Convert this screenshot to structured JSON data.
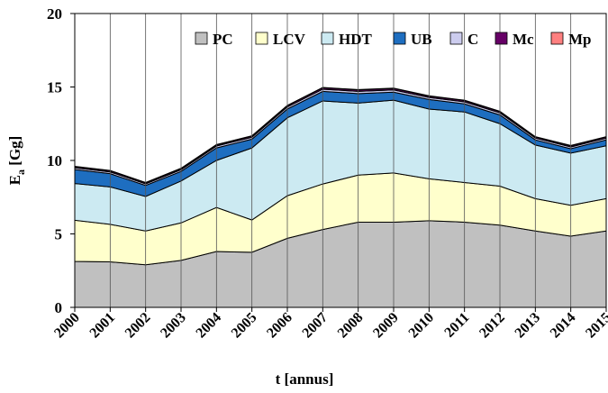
{
  "chart_data": {
    "type": "stacked-area",
    "x_title": "t [annus]",
    "y_title_parts": [
      "E",
      "a",
      " [Gg]"
    ],
    "categories": [
      "2000",
      "2001",
      "2002",
      "2003",
      "2004",
      "2005",
      "2006",
      "2007",
      "2008",
      "2009",
      "2010",
      "2011",
      "2012",
      "2013",
      "2014",
      "2015"
    ],
    "ylim": [
      0,
      20
    ],
    "yticks": [
      0,
      5,
      10,
      15,
      20
    ],
    "vertical_grid": true,
    "legend": "top",
    "series": [
      {
        "name": "PC",
        "color": "#c0c0c0",
        "values": [
          3.13,
          3.1,
          2.9,
          3.2,
          3.8,
          3.75,
          4.7,
          5.3,
          5.8,
          5.8,
          5.9,
          5.8,
          5.6,
          5.2,
          4.85,
          5.2
        ]
      },
      {
        "name": "LCV",
        "color": "#ffffcc",
        "values": [
          2.8,
          2.55,
          2.3,
          2.55,
          3.0,
          2.2,
          2.9,
          3.1,
          3.2,
          3.35,
          2.85,
          2.7,
          2.65,
          2.2,
          2.1,
          2.2
        ]
      },
      {
        "name": "HDT",
        "color": "#cceaf2",
        "values": [
          2.5,
          2.55,
          2.35,
          2.85,
          3.2,
          4.9,
          5.3,
          5.65,
          4.9,
          4.95,
          4.75,
          4.8,
          4.25,
          3.65,
          3.55,
          3.6
        ]
      },
      {
        "name": "UB",
        "color": "#1e6ec0",
        "values": [
          0.95,
          0.9,
          0.75,
          0.65,
          0.85,
          0.6,
          0.6,
          0.65,
          0.65,
          0.55,
          0.65,
          0.55,
          0.6,
          0.35,
          0.3,
          0.4
        ]
      },
      {
        "name": "C",
        "color": "#ccccee",
        "values": [
          0.12,
          0.12,
          0.11,
          0.12,
          0.13,
          0.13,
          0.14,
          0.15,
          0.15,
          0.15,
          0.14,
          0.14,
          0.14,
          0.12,
          0.12,
          0.12
        ]
      },
      {
        "name": "Mc",
        "color": "#660066",
        "values": [
          0.08,
          0.08,
          0.07,
          0.08,
          0.08,
          0.08,
          0.09,
          0.1,
          0.1,
          0.1,
          0.09,
          0.09,
          0.09,
          0.08,
          0.08,
          0.08
        ]
      },
      {
        "name": "Mp",
        "color": "#ff8080",
        "values": [
          0.02,
          0.02,
          0.02,
          0.02,
          0.02,
          0.02,
          0.02,
          0.02,
          0.02,
          0.02,
          0.02,
          0.02,
          0.02,
          0.02,
          0.02,
          0.02
        ]
      }
    ]
  }
}
